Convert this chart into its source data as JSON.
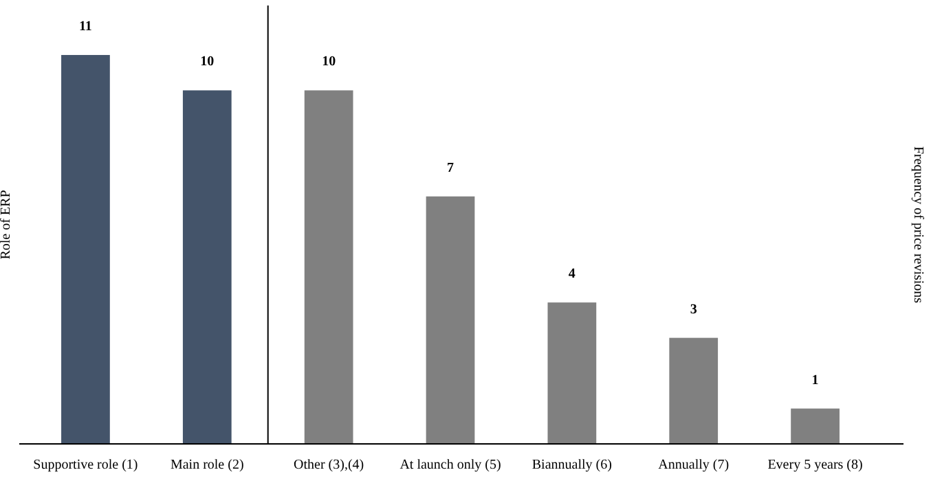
{
  "chart_data": {
    "type": "bar",
    "ylabel": "Role of ERP",
    "y2label": "Frequency of price revisions",
    "categories": [
      "Supportive role (1)",
      "Main role (2)",
      "Other (3),(4)",
      "At launch only (5)",
      "Biannually (6)",
      "Annually (7)",
      "Every 5 years (8)"
    ],
    "values": [
      11,
      10,
      10,
      7,
      4,
      3,
      1
    ],
    "colors": [
      "#44546a",
      "#44546a",
      "#808080",
      "#808080",
      "#808080",
      "#808080",
      "#808080"
    ],
    "ylim": [
      0,
      12.4
    ],
    "tick_labels": "x",
    "data_labels": true
  }
}
